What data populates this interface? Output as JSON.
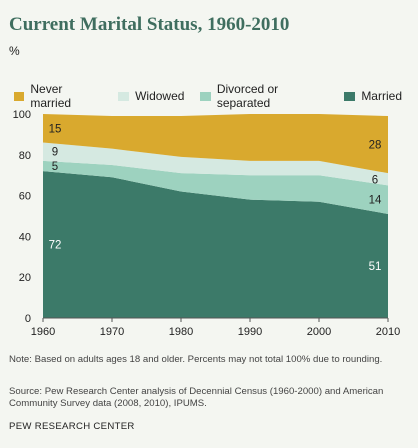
{
  "title": "Current Marital Status, 1960-2010",
  "unit": "%",
  "colors": {
    "never_married": "#d9a92e",
    "widowed": "#d5e9e1",
    "divorced": "#9dd2bf",
    "married": "#3c7a69"
  },
  "chart_data": {
    "type": "area",
    "stacked": true,
    "title": "Current Marital Status, 1960-2010",
    "ylabel": "%",
    "x": [
      1960,
      1970,
      1980,
      1990,
      2000,
      2010
    ],
    "xticks": [
      "1960",
      "1970",
      "1980",
      "1990",
      "2000",
      "2010"
    ],
    "yticks": [
      "0",
      "20",
      "40",
      "60",
      "80",
      "100"
    ],
    "ylim": [
      0,
      100
    ],
    "series": [
      {
        "key": "married",
        "name": "Married",
        "values": [
          72,
          69,
          62,
          58,
          57,
          51
        ]
      },
      {
        "key": "divorced",
        "name": "Divorced or separated",
        "values": [
          5,
          6,
          9,
          12,
          13,
          14
        ]
      },
      {
        "key": "widowed",
        "name": "Widowed",
        "values": [
          9,
          8,
          8,
          7,
          7,
          6
        ]
      },
      {
        "key": "never_married",
        "name": "Never married",
        "values": [
          15,
          16,
          20,
          23,
          23,
          28
        ]
      }
    ],
    "legend_order": [
      "Never married",
      "Widowed",
      "Divorced or separated",
      "Married"
    ],
    "data_labels": [
      {
        "series": "never_married",
        "x": 1960,
        "text": "15"
      },
      {
        "series": "widowed",
        "x": 1960,
        "text": "9"
      },
      {
        "series": "divorced",
        "x": 1960,
        "text": "5"
      },
      {
        "series": "married",
        "x": 1960,
        "text": "72"
      },
      {
        "series": "never_married",
        "x": 2010,
        "text": "28"
      },
      {
        "series": "widowed",
        "x": 2010,
        "text": "6"
      },
      {
        "series": "divorced",
        "x": 2010,
        "text": "14"
      },
      {
        "series": "married",
        "x": 2010,
        "text": "51"
      }
    ],
    "legend_position": "top"
  },
  "notes": {
    "note": "Note: Based on adults ages 18 and older. Percents may not total 100% due to rounding.",
    "source": "Source: Pew Research Center analysis of Decennial Census (1960-2000) and American Community Survey data (2008, 2010), IPUMS.",
    "credit": "PEW RESEARCH CENTER"
  }
}
